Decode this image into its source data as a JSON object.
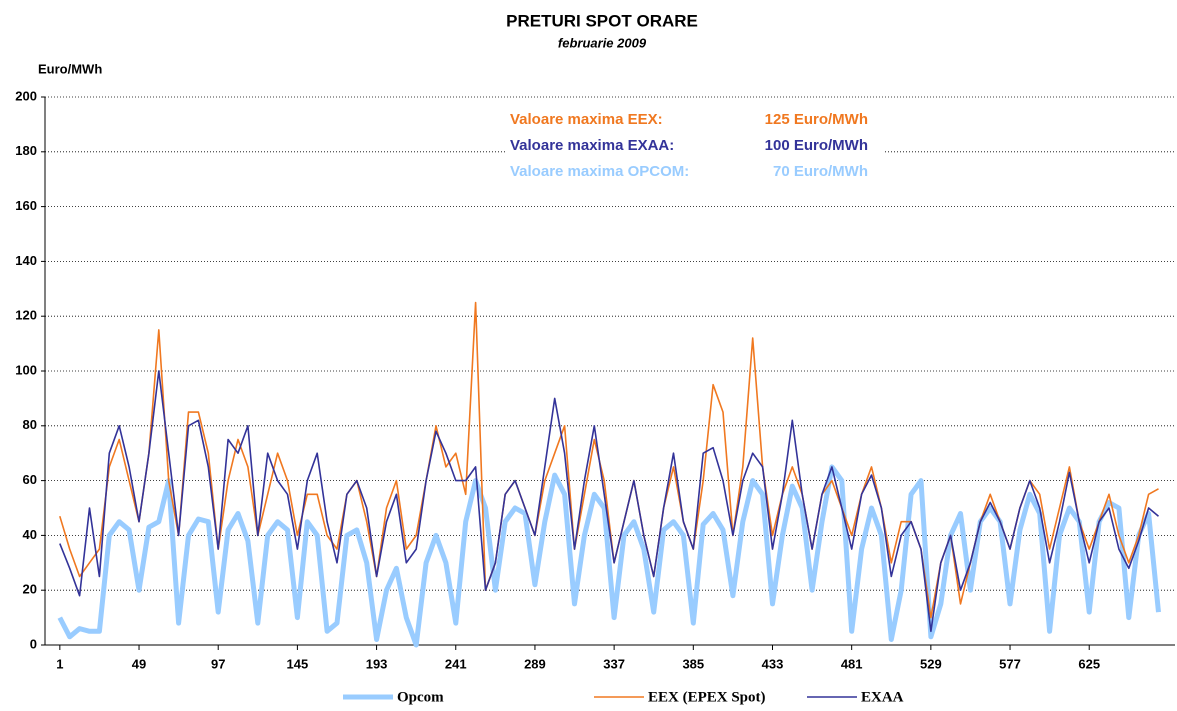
{
  "chart_data": {
    "type": "line",
    "title": "PRETURI SPOT ORARE",
    "subtitle": "februarie 2009",
    "y_label": "Euro/MWh",
    "xlim": [
      -8,
      677
    ],
    "xticks": [
      1,
      49,
      97,
      145,
      193,
      241,
      289,
      337,
      385,
      433,
      481,
      529,
      577,
      625
    ],
    "ylim": [
      0,
      200
    ],
    "yticks": [
      0,
      20,
      40,
      60,
      80,
      100,
      120,
      140,
      160,
      180,
      200
    ],
    "grid": true,
    "legend": "bottom",
    "annotations": [
      {
        "text": "Valoare maxima EEX:",
        "value": "125 Euro/MWh",
        "color": "#f07820"
      },
      {
        "text": "Valoare maxima EXAA:",
        "value": "100 Euro/MWh",
        "color": "#333399"
      },
      {
        "text": "Valoare maxima OPCOM:",
        "value": "70 Euro/MWh",
        "color": "#99ccff"
      }
    ],
    "x": [
      1,
      7,
      13,
      19,
      25,
      31,
      37,
      43,
      49,
      55,
      61,
      67,
      73,
      79,
      85,
      91,
      97,
      103,
      109,
      115,
      121,
      127,
      133,
      139,
      145,
      151,
      157,
      163,
      169,
      175,
      181,
      187,
      193,
      199,
      205,
      211,
      217,
      223,
      229,
      235,
      241,
      247,
      253,
      259,
      265,
      271,
      277,
      283,
      289,
      295,
      301,
      307,
      313,
      319,
      325,
      331,
      337,
      343,
      349,
      355,
      361,
      367,
      373,
      379,
      385,
      391,
      397,
      403,
      409,
      415,
      421,
      427,
      433,
      439,
      445,
      451,
      457,
      463,
      469,
      475,
      481,
      487,
      493,
      499,
      505,
      511,
      517,
      523,
      529,
      535,
      541,
      547,
      553,
      559,
      565,
      571,
      577,
      583,
      589,
      595,
      601,
      607,
      613,
      619,
      625,
      631,
      637,
      643,
      649,
      655,
      661,
      667
    ],
    "series": [
      {
        "name": "Opcom",
        "color": "#99ccff",
        "line_width": 5,
        "values": [
          10,
          3,
          6,
          5,
          5,
          40,
          45,
          42,
          20,
          43,
          45,
          60,
          8,
          40,
          46,
          45,
          12,
          42,
          48,
          38,
          8,
          40,
          45,
          42,
          10,
          45,
          40,
          5,
          8,
          40,
          42,
          30,
          2,
          20,
          28,
          10,
          0,
          30,
          40,
          30,
          8,
          45,
          60,
          50,
          20,
          45,
          50,
          48,
          22,
          45,
          62,
          55,
          15,
          40,
          55,
          50,
          10,
          40,
          45,
          35,
          12,
          42,
          45,
          40,
          8,
          44,
          48,
          42,
          18,
          45,
          60,
          55,
          15,
          40,
          58,
          50,
          20,
          45,
          65,
          60,
          5,
          35,
          50,
          40,
          2,
          20,
          55,
          60,
          3,
          15,
          40,
          48,
          20,
          45,
          50,
          45,
          15,
          42,
          55,
          48,
          5,
          40,
          50,
          45,
          12,
          45,
          52,
          50,
          10,
          40,
          48,
          12
        ]
      },
      {
        "name": "EEX (EPEX Spot)",
        "color": "#f07820",
        "line_width": 1.6,
        "values": [
          47,
          35,
          25,
          30,
          35,
          65,
          75,
          60,
          45,
          70,
          115,
          60,
          40,
          85,
          85,
          70,
          35,
          60,
          75,
          65,
          40,
          55,
          70,
          60,
          40,
          55,
          55,
          40,
          35,
          55,
          60,
          45,
          25,
          50,
          60,
          35,
          40,
          60,
          80,
          65,
          70,
          55,
          125,
          20,
          30,
          55,
          60,
          50,
          40,
          60,
          70,
          80,
          35,
          55,
          75,
          60,
          30,
          45,
          60,
          40,
          25,
          50,
          65,
          45,
          35,
          60,
          95,
          85,
          40,
          65,
          112,
          65,
          40,
          55,
          65,
          55,
          35,
          55,
          60,
          50,
          40,
          55,
          65,
          50,
          30,
          45,
          45,
          35,
          10,
          30,
          40,
          15,
          30,
          45,
          55,
          45,
          35,
          50,
          60,
          55,
          35,
          50,
          65,
          45,
          35,
          45,
          55,
          40,
          30,
          40,
          55,
          57
        ]
      },
      {
        "name": "EXAA",
        "color": "#333399",
        "line_width": 1.6,
        "values": [
          37,
          28,
          18,
          50,
          25,
          70,
          80,
          65,
          45,
          70,
          100,
          70,
          40,
          80,
          82,
          65,
          35,
          75,
          70,
          80,
          40,
          70,
          60,
          55,
          35,
          60,
          70,
          45,
          30,
          55,
          60,
          50,
          25,
          45,
          55,
          30,
          35,
          60,
          78,
          70,
          60,
          60,
          65,
          20,
          30,
          55,
          60,
          50,
          40,
          65,
          90,
          70,
          35,
          60,
          80,
          55,
          30,
          45,
          60,
          40,
          25,
          50,
          70,
          45,
          35,
          70,
          72,
          60,
          40,
          60,
          70,
          65,
          35,
          55,
          82,
          55,
          35,
          55,
          65,
          50,
          35,
          55,
          62,
          50,
          25,
          40,
          45,
          35,
          5,
          30,
          40,
          20,
          30,
          45,
          52,
          45,
          35,
          50,
          60,
          50,
          30,
          45,
          63,
          45,
          30,
          45,
          50,
          35,
          28,
          38,
          50,
          47
        ]
      }
    ]
  }
}
